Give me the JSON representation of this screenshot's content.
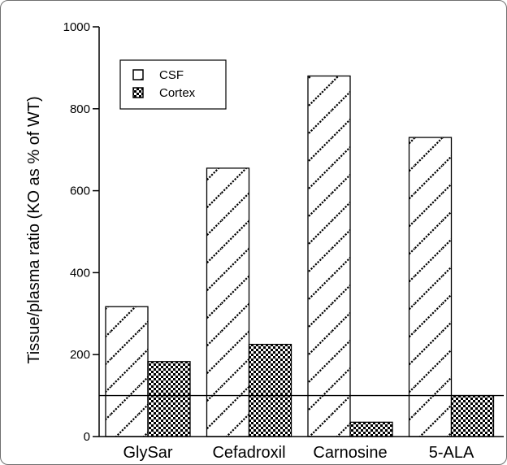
{
  "chart_data": {
    "type": "bar",
    "categories": [
      "GlySar",
      "Cefadroxil",
      "Carnosine",
      "5-ALA"
    ],
    "series": [
      {
        "name": "CSF",
        "values": [
          317,
          655,
          880,
          730
        ],
        "pattern": "diagonal-hatch"
      },
      {
        "name": "Cortex",
        "values": [
          183,
          225,
          35,
          100
        ],
        "pattern": "checker"
      }
    ],
    "title": "",
    "xlabel": "",
    "ylabel": "Tissue/plasma ratio (KO as % of WT)",
    "ylim": [
      0,
      1000
    ],
    "yticks": [
      0,
      200,
      400,
      600,
      800,
      1000
    ],
    "reference_line": 100,
    "grid": false,
    "legend_position": "top-left"
  }
}
